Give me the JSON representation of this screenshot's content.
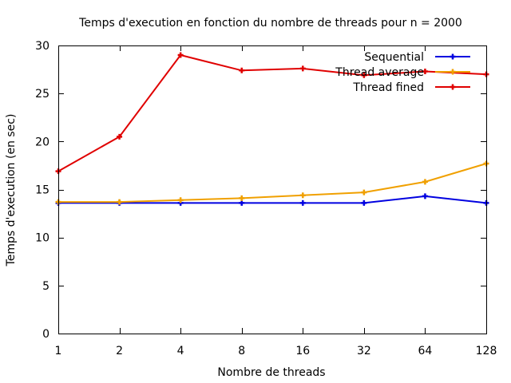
{
  "chart_data": {
    "type": "line",
    "title": "Temps d'execution en fonction du nombre de threads pour n = 2000",
    "xlabel": "Nombre de threads",
    "ylabel": "Temps d'execution (en sec)",
    "categories": [
      "1",
      "2",
      "4",
      "8",
      "16",
      "32",
      "64",
      "128"
    ],
    "x_scale": "log2",
    "ylim": [
      0,
      30
    ],
    "yticks": [
      "0",
      "5",
      "10",
      "15",
      "20",
      "25",
      "30"
    ],
    "grid": false,
    "legend_position": "top-right",
    "series": [
      {
        "name": "Sequential",
        "color": "#0000e0",
        "values": [
          13.6,
          13.6,
          13.6,
          13.6,
          13.6,
          13.6,
          14.3,
          13.6
        ]
      },
      {
        "name": "Thread average",
        "color": "#f0a000",
        "values": [
          13.7,
          13.7,
          13.9,
          14.1,
          14.4,
          14.7,
          15.8,
          17.7
        ]
      },
      {
        "name": "Thread fined",
        "color": "#e00000",
        "values": [
          16.9,
          20.5,
          29.0,
          27.4,
          27.6,
          26.9,
          27.3,
          27.0
        ]
      }
    ]
  }
}
